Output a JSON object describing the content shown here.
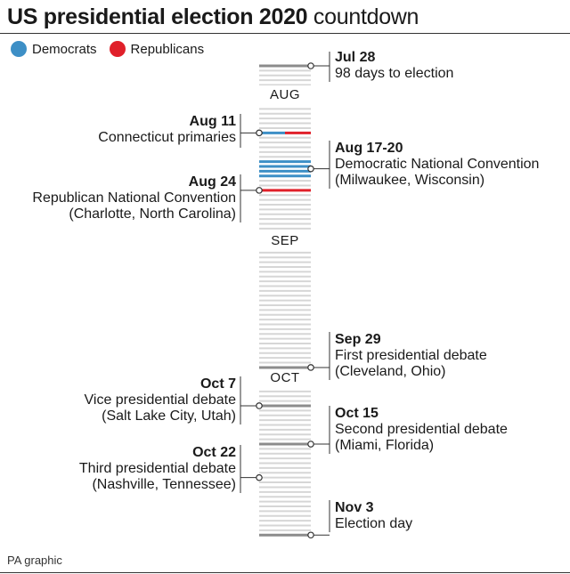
{
  "title": {
    "bold": "US presidential election 2020",
    "light": " countdown"
  },
  "legend": [
    {
      "label": "Democrats",
      "color": "#3d8fc6"
    },
    {
      "label": "Republicans",
      "color": "#e0202a"
    }
  ],
  "months": [
    "AUG",
    "SEP",
    "OCT"
  ],
  "events": [
    {
      "date": "Jul 28",
      "line1": "98 days to election",
      "line2": ""
    },
    {
      "date": "Aug 11",
      "line1": "Connecticut primaries",
      "line2": ""
    },
    {
      "date": "Aug 17-20",
      "line1": "Democratic National Convention",
      "line2": "(Milwaukee, Wisconsin)"
    },
    {
      "date": "Aug 24",
      "line1": "Republican National Convention",
      "line2": "(Charlotte, North Carolina)"
    },
    {
      "date": "Sep 29",
      "line1": "First presidential debate",
      "line2": "(Cleveland, Ohio)"
    },
    {
      "date": "Oct 7",
      "line1": "Vice presidential debate",
      "line2": "(Salt Lake City, Utah)"
    },
    {
      "date": "Oct 15",
      "line1": "Second presidential debate",
      "line2": "(Miami, Florida)"
    },
    {
      "date": "Oct 22",
      "line1": "Third presidential debate",
      "line2": "(Nashville, Tennessee)"
    },
    {
      "date": "Nov 3",
      "line1": "Election day",
      "line2": ""
    }
  ],
  "source": "PA graphic",
  "colors": {
    "dem": "#3d8fc6",
    "rep": "#e0202a",
    "day": "#d6d6d6",
    "event_day": "#8c8c8c"
  }
}
